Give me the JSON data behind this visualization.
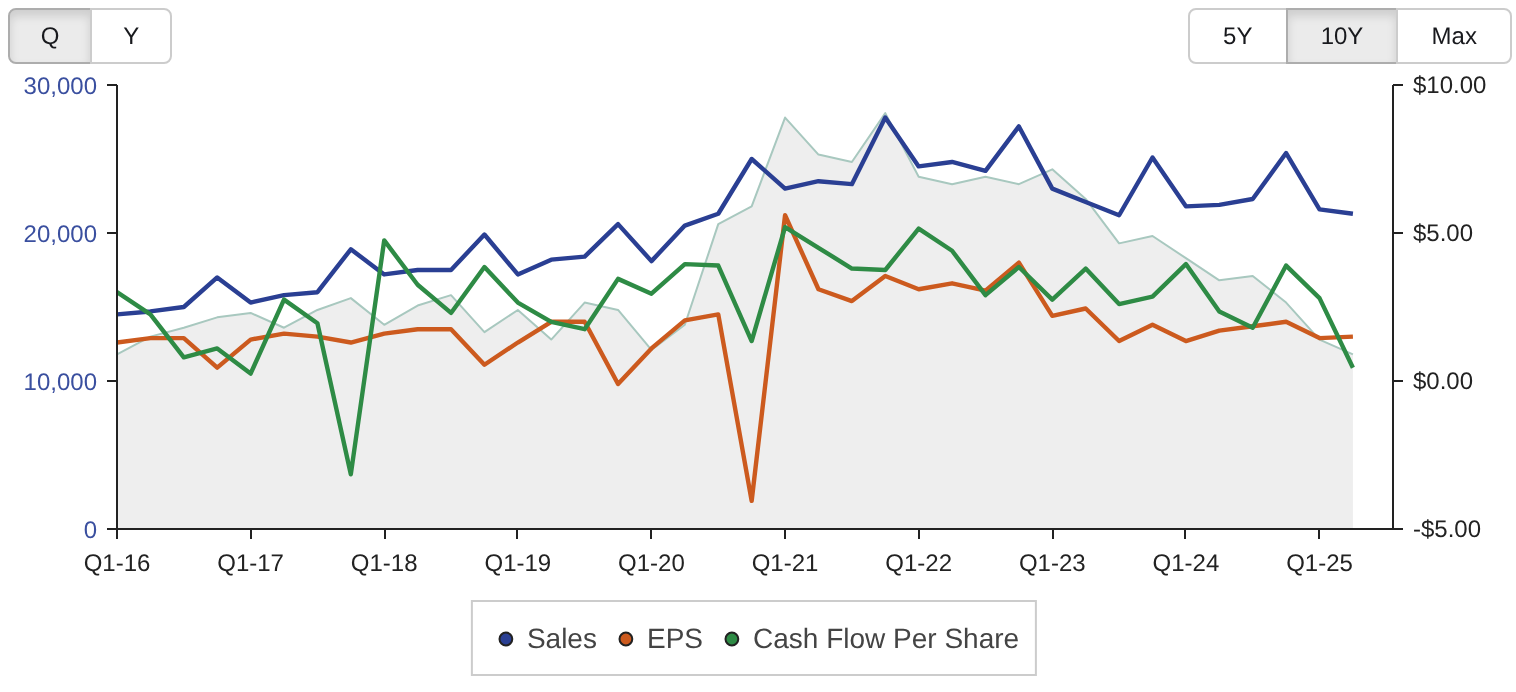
{
  "chart_data": {
    "type": "line",
    "categories": [
      "Q1-16",
      null,
      null,
      null,
      "Q1-17",
      null,
      null,
      null,
      "Q1-18",
      null,
      null,
      null,
      "Q1-19",
      null,
      null,
      null,
      "Q1-20",
      null,
      null,
      null,
      "Q1-21",
      null,
      null,
      null,
      "Q1-22",
      null,
      null,
      null,
      "Q1-23",
      null,
      null,
      null,
      "Q1-24",
      null,
      null,
      null,
      "Q1-25",
      null
    ],
    "series": [
      {
        "type": "area",
        "color": "#a8c8bf",
        "values": [
          11800,
          13000,
          13600,
          14300,
          14600,
          13600,
          14800,
          15600,
          13800,
          15100,
          15800,
          13300,
          14800,
          12800,
          15300,
          14800,
          12100,
          13800,
          20600,
          21800,
          27800,
          25300,
          24800,
          28100,
          23800,
          23300,
          23800,
          23300,
          24300,
          22300,
          19300,
          19800,
          18300,
          16800,
          17100,
          15300,
          12800,
          11800
        ]
      },
      {
        "name": "Sales",
        "color": "#2a3f93",
        "values": [
          14500,
          14700,
          15000,
          17000,
          15300,
          15800,
          16000,
          18900,
          17200,
          17500,
          17500,
          19900,
          17200,
          18200,
          18400,
          20600,
          18100,
          20500,
          21300,
          25000,
          23000,
          23500,
          23300,
          27800,
          24500,
          24800,
          24200,
          27200,
          23000,
          22100,
          21200,
          25100,
          21800,
          21900,
          22300,
          25400,
          21600,
          21300
        ]
      },
      {
        "name": "EPS",
        "color": "#cc5a1e",
        "axis": "y2",
        "values": [
          1.3,
          1.45,
          1.45,
          0.45,
          1.4,
          1.6,
          1.5,
          1.3,
          1.6,
          1.75,
          1.75,
          0.55,
          1.3,
          2.0,
          2.0,
          -0.1,
          1.1,
          2.05,
          2.25,
          -4.05,
          5.6,
          3.1,
          2.7,
          3.55,
          3.1,
          3.3,
          3.05,
          4.0,
          2.2,
          2.45,
          1.35,
          1.9,
          1.35,
          1.7,
          1.85,
          2.0,
          1.45,
          1.5
        ]
      },
      {
        "name": "Cash Flow Per Share",
        "color": "#2e8b45",
        "axis": "y2",
        "values": [
          3.0,
          2.25,
          0.8,
          1.1,
          0.25,
          2.75,
          1.95,
          -3.15,
          4.75,
          3.25,
          2.3,
          3.85,
          2.65,
          2.0,
          1.75,
          3.45,
          2.95,
          3.95,
          3.9,
          1.35,
          5.2,
          4.5,
          3.8,
          3.75,
          5.15,
          4.4,
          2.9,
          3.85,
          2.75,
          3.8,
          2.6,
          2.85,
          3.95,
          2.35,
          1.8,
          3.9,
          2.8,
          0.45
        ]
      }
    ],
    "ylim": [
      0,
      30000
    ],
    "yticks": [
      {
        "value": 0,
        "label": "0"
      },
      {
        "value": 10000,
        "label": "10,000"
      },
      {
        "value": 20000,
        "label": "20,000"
      },
      {
        "value": 30000,
        "label": "30,000"
      }
    ],
    "y2lim": [
      -5,
      10
    ],
    "y2ticks": [
      {
        "value": -5,
        "label": "-$5.00"
      },
      {
        "value": 0,
        "label": "$0.00"
      },
      {
        "value": 5,
        "label": "$5.00"
      },
      {
        "value": 10,
        "label": "$10.00"
      }
    ],
    "grid": false,
    "legend": "bottom",
    "marker": "none",
    "line_style": "solid",
    "annotations": [
      "Q",
      "Y",
      "5Y",
      "10Y",
      "Max"
    ]
  }
}
